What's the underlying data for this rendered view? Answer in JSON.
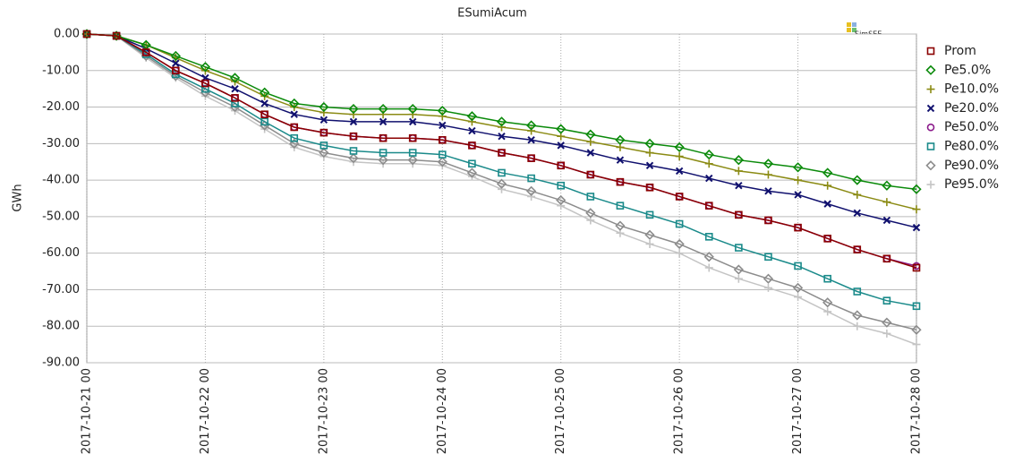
{
  "chart_data": {
    "type": "line",
    "title": "ESumiAcum",
    "watermark": "SimSEE",
    "y_label": "GWh",
    "xlim": [
      0,
      7
    ],
    "xticks": [
      {
        "value": 0,
        "label": "2017-10-21 00"
      },
      {
        "value": 1,
        "label": "2017-10-22 00"
      },
      {
        "value": 2,
        "label": "2017-10-23 00"
      },
      {
        "value": 3,
        "label": "2017-10-24 00"
      },
      {
        "value": 4,
        "label": "2017-10-25 00"
      },
      {
        "value": 5,
        "label": "2017-10-26 00"
      },
      {
        "value": 6,
        "label": "2017-10-27 00"
      },
      {
        "value": 7,
        "label": "2017-10-28 00"
      }
    ],
    "ylim": [
      -90,
      0
    ],
    "yticks": [
      {
        "value": -90,
        "label": "-90.00"
      },
      {
        "value": -80,
        "label": "-80.00"
      },
      {
        "value": -70,
        "label": "-70.00"
      },
      {
        "value": -60,
        "label": "-60.00"
      },
      {
        "value": -50,
        "label": "-50.00"
      },
      {
        "value": -40,
        "label": "-40.00"
      },
      {
        "value": -30,
        "label": "-30.00"
      },
      {
        "value": -20,
        "label": "-20.00"
      },
      {
        "value": -10,
        "label": "-10.00"
      },
      {
        "value": 0,
        "label": "0.00"
      }
    ],
    "grid": true,
    "legend": "right",
    "x": [
      0,
      0.25,
      0.5,
      0.75,
      1,
      1.25,
      1.5,
      1.75,
      2,
      2.25,
      2.5,
      2.75,
      3,
      3.25,
      3.5,
      3.75,
      4,
      4.25,
      4.5,
      4.75,
      5,
      5.25,
      5.5,
      5.75,
      6,
      6.25,
      6.5,
      6.75,
      7
    ],
    "series": [
      {
        "name": "Prom",
        "color": "#8b0000",
        "marker": "square",
        "values": [
          0,
          -0.5,
          -5,
          -10,
          -13.5,
          -17.5,
          -22,
          -25.5,
          -27,
          -28,
          -28.5,
          -28.5,
          -29,
          -30.5,
          -32.5,
          -34,
          -36,
          -38.5,
          -40.5,
          -42,
          -44.5,
          -47,
          -49.5,
          -51,
          -53,
          -56,
          -59,
          -61.5,
          -64
        ]
      },
      {
        "name": "Pe5.0%",
        "color": "#0a8a0a",
        "marker": "diamond",
        "values": [
          0,
          -0.5,
          -3,
          -6,
          -9,
          -12,
          -16,
          -19,
          -20,
          -20.5,
          -20.5,
          -20.5,
          -21,
          -22.5,
          -24,
          -25,
          -26,
          -27.5,
          -29,
          -30,
          -31,
          -33,
          -34.5,
          -35.5,
          -36.5,
          -38,
          -40,
          -41.5,
          -42.5
        ]
      },
      {
        "name": "Pe10.0%",
        "color": "#8b8b14",
        "marker": "plus",
        "values": [
          0,
          -0.5,
          -3,
          -6.5,
          -10,
          -13,
          -17,
          -20,
          -21.5,
          -22,
          -22,
          -22,
          -22.5,
          -24,
          -25.5,
          -26.5,
          -28,
          -29.5,
          -31,
          -32.5,
          -33.5,
          -35.5,
          -37.5,
          -38.5,
          -40,
          -41.5,
          -44,
          -46,
          -48
        ]
      },
      {
        "name": "Pe20.0%",
        "color": "#10106e",
        "marker": "cross",
        "values": [
          0,
          -0.5,
          -4,
          -8,
          -12,
          -15,
          -19,
          -22,
          -23.5,
          -24,
          -24,
          -24,
          -25,
          -26.5,
          -28,
          -29,
          -30.5,
          -32.5,
          -34.5,
          -36,
          -37.5,
          -39.5,
          -41.5,
          -43,
          -44,
          -46.5,
          -49,
          -51,
          -53
        ]
      },
      {
        "name": "Pe50.0%",
        "color": "#8b1a8b",
        "marker": "circle",
        "values": [
          0,
          -0.5,
          -5,
          -10,
          -13.5,
          -17.5,
          -22,
          -25.5,
          -27,
          -28,
          -28.5,
          -28.5,
          -29,
          -30.5,
          -32.5,
          -34,
          -36,
          -38.5,
          -40.5,
          -42,
          -44.5,
          -47,
          -49.5,
          -51,
          -53,
          -56,
          -59,
          -61.5,
          -63.5
        ]
      },
      {
        "name": "Pe80.0%",
        "color": "#1a8a8a",
        "marker": "square",
        "values": [
          0,
          -0.5,
          -5.5,
          -11,
          -15,
          -19,
          -24,
          -28.5,
          -30.5,
          -32,
          -32.5,
          -32.5,
          -33,
          -35.5,
          -38,
          -39.5,
          -41.5,
          -44.5,
          -47,
          -49.5,
          -52,
          -55.5,
          -58.5,
          -61,
          -63.5,
          -67,
          -70.5,
          -73,
          -74.5
        ]
      },
      {
        "name": "Pe90.0%",
        "color": "#8c8c8c",
        "marker": "diamond",
        "values": [
          0,
          -0.5,
          -6,
          -11.5,
          -16,
          -20,
          -25,
          -30,
          -32.5,
          -34,
          -34.5,
          -34.5,
          -35,
          -38,
          -41,
          -43,
          -45.5,
          -49,
          -52.5,
          -55,
          -57.5,
          -61,
          -64.5,
          -67,
          -69.5,
          -73.5,
          -77,
          -79,
          -81
        ]
      },
      {
        "name": "Pe95.0%",
        "color": "#c4c4c4",
        "marker": "plus",
        "values": [
          0,
          -0.5,
          -6.5,
          -12,
          -17,
          -21,
          -26,
          -31,
          -33.5,
          -35,
          -35.5,
          -35.5,
          -36,
          -39,
          -42.5,
          -44.5,
          -47,
          -51,
          -54.5,
          -57.5,
          -60,
          -64,
          -67,
          -69.5,
          -72,
          -76,
          -80,
          -82,
          -85
        ]
      }
    ]
  }
}
